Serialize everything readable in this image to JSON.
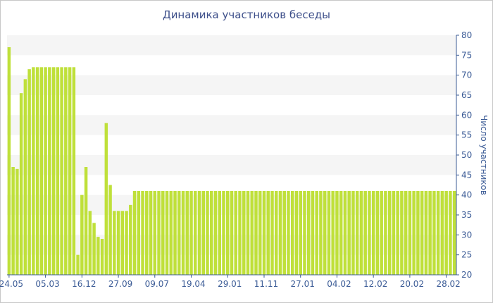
{
  "chart_data": {
    "type": "bar",
    "title": "Динамика участников беседы",
    "xlabel": "",
    "ylabel": "Число участников",
    "ylim": [
      20,
      80
    ],
    "yticks": [
      20,
      25,
      30,
      35,
      40,
      45,
      50,
      55,
      60,
      65,
      70,
      75,
      80
    ],
    "xtick_labels": [
      "24.05",
      "05.03",
      "16.12",
      "27.09",
      "09.07",
      "19.04",
      "29.01",
      "11.11",
      "27.01",
      "04.02",
      "12.02",
      "20.02",
      "28.02"
    ],
    "xtick_positions": [
      0,
      9,
      18,
      27,
      36,
      45,
      54,
      63,
      72,
      81,
      90,
      99,
      108
    ],
    "grid": true,
    "legend": "none",
    "color": "#bfe03a",
    "values": [
      77,
      47,
      46.5,
      65.5,
      69,
      71.5,
      72,
      72,
      72,
      72,
      72,
      72,
      72,
      72,
      72,
      72,
      72,
      25,
      40,
      47,
      36,
      33,
      29.5,
      29,
      58,
      42.5,
      36,
      36,
      36,
      36,
      37.5,
      41,
      41,
      41,
      41,
      41,
      41,
      41,
      41,
      41,
      41,
      41,
      41,
      41,
      41,
      41,
      41,
      41,
      41,
      41,
      41,
      41,
      41,
      41,
      41,
      41,
      41,
      41,
      41,
      41,
      41,
      41,
      41,
      41,
      41,
      41,
      41,
      41,
      41,
      41,
      41,
      41,
      41,
      41,
      41,
      41,
      41,
      41,
      41,
      41,
      41,
      41,
      41,
      41,
      41,
      41,
      41,
      41,
      41,
      41,
      41,
      41,
      41,
      41,
      41,
      41,
      41,
      41,
      41,
      41,
      41,
      41,
      41,
      41,
      41,
      41,
      41,
      41,
      41,
      41,
      41
    ]
  }
}
